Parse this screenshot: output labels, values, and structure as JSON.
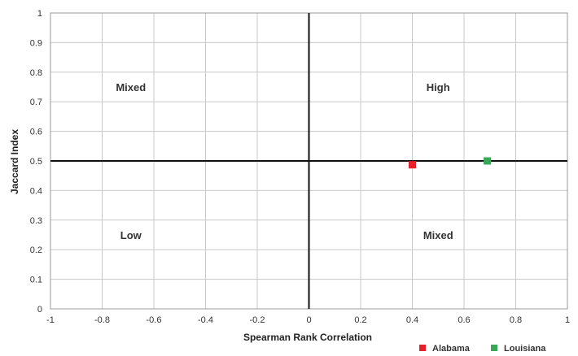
{
  "chart_data": {
    "type": "scatter",
    "xlabel": "Spearman Rank Correlation",
    "ylabel": "Jaccard Index",
    "xlim": [
      -1,
      1
    ],
    "ylim": [
      0,
      1
    ],
    "x_ticks": [
      "-1",
      "-0.8",
      "-0.6",
      "-0.4",
      "-0.2",
      "0",
      "0.2",
      "0.4",
      "0.6",
      "0.8",
      "1"
    ],
    "x_tick_values": [
      -1,
      -0.8,
      -0.6,
      -0.4,
      -0.2,
      0,
      0.2,
      0.4,
      0.6,
      0.8,
      1
    ],
    "y_ticks": [
      "0",
      "0.1",
      "0.2",
      "0.3",
      "0.4",
      "0.5",
      "0.6",
      "0.7",
      "0.8",
      "0.9",
      "1"
    ],
    "y_tick_values": [
      0,
      0.1,
      0.2,
      0.3,
      0.4,
      0.5,
      0.6,
      0.7,
      0.8,
      0.9,
      1
    ],
    "grid": true,
    "reference_lines": {
      "x": 0,
      "y": 0.5
    },
    "quadrant_labels": [
      {
        "text": "Mixed",
        "x": -0.5,
        "y": 0.75
      },
      {
        "text": "High",
        "x": 0.5,
        "y": 0.75
      },
      {
        "text": "Low",
        "x": -0.5,
        "y": 0.25
      },
      {
        "text": "Mixed",
        "x": 0.5,
        "y": 0.25
      }
    ],
    "series": [
      {
        "name": "Alabama",
        "color": "#e8202a",
        "points": [
          {
            "x": 0.4,
            "y": 0.487
          }
        ]
      },
      {
        "name": "Louisiana",
        "color": "#3aa657",
        "points": [
          {
            "x": 0.69,
            "y": 0.5
          }
        ]
      }
    ],
    "legend_position": "bottom-right"
  }
}
